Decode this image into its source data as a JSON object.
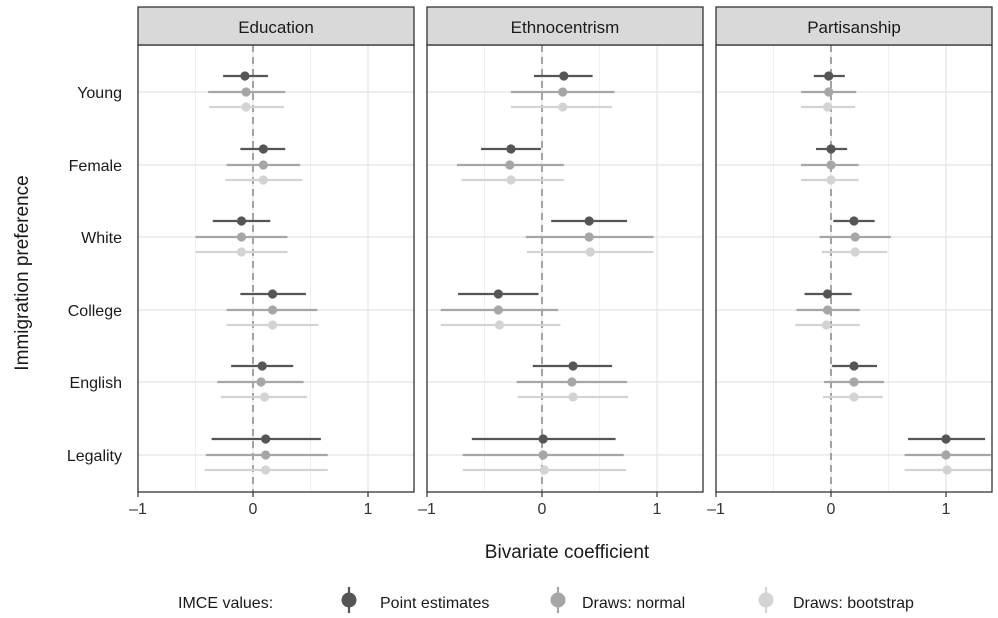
{
  "chart_data": {
    "type": "dot-whisker",
    "xlabel": "Bivariate coefficient",
    "ylabel": "Immigration preference",
    "xlim": [
      -1,
      1.4
    ],
    "xticks": [
      -1,
      0,
      1
    ],
    "tick_labels": [
      "–1",
      "0",
      "1"
    ],
    "reference_line": 0,
    "grid": true,
    "categories": [
      "Young",
      "Female",
      "White",
      "College",
      "English",
      "Legality"
    ],
    "legend": {
      "title": "IMCE values:",
      "position": "bottom",
      "entries": [
        "Point estimates",
        "Draws: normal",
        "Draws: bootstrap"
      ]
    },
    "series_colors": [
      "#555555",
      "#a6a6a6",
      "#d3d3d3"
    ],
    "panels": [
      {
        "title": "Education",
        "data": [
          [
            [
              -0.07,
              -0.26,
              0.13
            ],
            [
              -0.06,
              -0.39,
              0.28
            ],
            [
              -0.06,
              -0.38,
              0.27
            ]
          ],
          [
            [
              0.09,
              -0.11,
              0.28
            ],
            [
              0.09,
              -0.23,
              0.41
            ],
            [
              0.09,
              -0.24,
              0.43
            ]
          ],
          [
            [
              -0.1,
              -0.35,
              0.15
            ],
            [
              -0.1,
              -0.5,
              0.3
            ],
            [
              -0.1,
              -0.5,
              0.3
            ]
          ],
          [
            [
              0.17,
              -0.11,
              0.46
            ],
            [
              0.17,
              -0.23,
              0.56
            ],
            [
              0.17,
              -0.23,
              0.57
            ]
          ],
          [
            [
              0.08,
              -0.19,
              0.35
            ],
            [
              0.07,
              -0.31,
              0.44
            ],
            [
              0.1,
              -0.28,
              0.47
            ]
          ],
          [
            [
              0.11,
              -0.36,
              0.59
            ],
            [
              0.11,
              -0.41,
              0.65
            ],
            [
              0.11,
              -0.42,
              0.65
            ]
          ]
        ]
      },
      {
        "title": "Ethnocentrism",
        "data": [
          [
            [
              0.19,
              -0.07,
              0.44
            ],
            [
              0.18,
              -0.27,
              0.63
            ],
            [
              0.18,
              -0.27,
              0.61
            ]
          ],
          [
            [
              -0.27,
              -0.53,
              -0.01
            ],
            [
              -0.28,
              -0.74,
              0.19
            ],
            [
              -0.27,
              -0.7,
              0.19
            ]
          ],
          [
            [
              0.41,
              0.08,
              0.74
            ],
            [
              0.41,
              -0.14,
              0.97
            ],
            [
              0.42,
              -0.13,
              0.97
            ]
          ],
          [
            [
              -0.38,
              -0.73,
              -0.03
            ],
            [
              -0.38,
              -0.88,
              0.14
            ],
            [
              -0.37,
              -0.88,
              0.16
            ]
          ],
          [
            [
              0.27,
              -0.08,
              0.61
            ],
            [
              0.26,
              -0.22,
              0.74
            ],
            [
              0.27,
              -0.21,
              0.75
            ]
          ],
          [
            [
              0.01,
              -0.61,
              0.64
            ],
            [
              0.01,
              -0.69,
              0.71
            ],
            [
              0.02,
              -0.69,
              0.73
            ]
          ]
        ]
      },
      {
        "title": "Partisanship",
        "data": [
          [
            [
              -0.02,
              -0.15,
              0.12
            ],
            [
              -0.02,
              -0.26,
              0.22
            ],
            [
              -0.03,
              -0.26,
              0.21
            ]
          ],
          [
            [
              0.0,
              -0.13,
              0.14
            ],
            [
              0.0,
              -0.26,
              0.24
            ],
            [
              0.0,
              -0.26,
              0.24
            ]
          ],
          [
            [
              0.2,
              0.02,
              0.38
            ],
            [
              0.21,
              -0.1,
              0.52
            ],
            [
              0.21,
              -0.08,
              0.49
            ]
          ],
          [
            [
              -0.03,
              -0.23,
              0.18
            ],
            [
              -0.03,
              -0.3,
              0.25
            ],
            [
              -0.04,
              -0.31,
              0.25
            ]
          ],
          [
            [
              0.2,
              0.01,
              0.4
            ],
            [
              0.2,
              -0.06,
              0.46
            ],
            [
              0.2,
              -0.07,
              0.45
            ]
          ],
          [
            [
              1.0,
              0.67,
              1.34
            ],
            [
              1.0,
              0.64,
              1.39
            ],
            [
              1.01,
              0.64,
              1.4
            ]
          ]
        ]
      }
    ]
  }
}
